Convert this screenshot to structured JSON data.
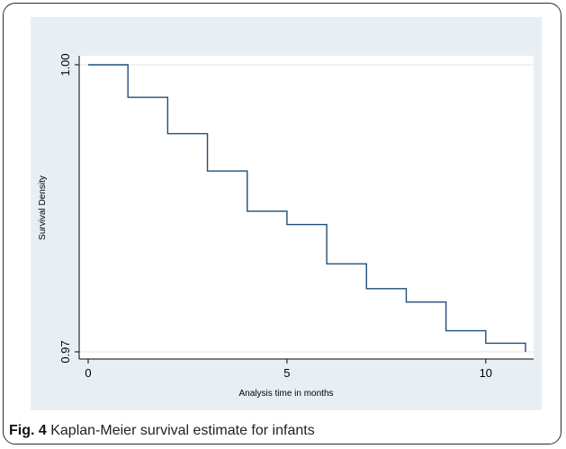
{
  "caption": {
    "label": "Fig. 4",
    "text": "Kaplan-Meier survival estimate for infants"
  },
  "chart_data": {
    "type": "line",
    "step": true,
    "title": "",
    "xlabel": "Analysis time in months",
    "ylabel": "Survival Density",
    "xlim": [
      0,
      11
    ],
    "ylim": [
      0.97,
      1.0
    ],
    "x_ticks": [
      0,
      5,
      10
    ],
    "y_ticks": [
      0.97,
      1.0
    ],
    "x_tick_labels": [
      "0",
      "5",
      "10"
    ],
    "y_tick_labels": [
      "0.97",
      "1.00"
    ],
    "grid": true,
    "series": [
      {
        "color": "#1f4e79",
        "x": [
          0,
          1,
          2,
          3,
          4,
          5,
          6,
          7,
          8,
          9,
          10,
          11
        ],
        "y": [
          1.0,
          0.9966,
          0.9928,
          0.9889,
          0.9847,
          0.9833,
          0.9792,
          0.9766,
          0.9752,
          0.9722,
          0.9709,
          0.9709
        ],
        "end_drop_to": 0.97
      }
    ]
  }
}
